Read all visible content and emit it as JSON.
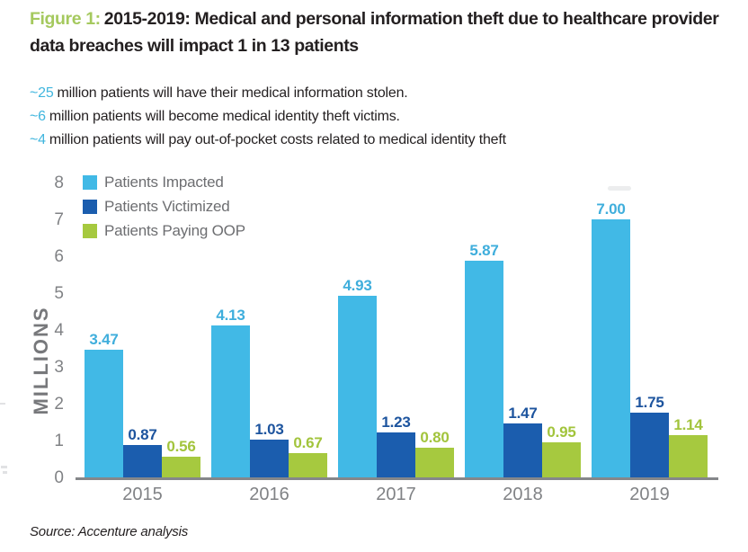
{
  "header": {
    "figure_label": "Figure 1:",
    "title": "2015-2019: Medical and personal information theft due to healthcare provider data breaches will impact 1 in 13 patients"
  },
  "bullets": [
    {
      "prefix": "~25",
      "text": "million patients will have their medical information stolen."
    },
    {
      "prefix": "~6",
      "text": "million patients will become medical identity theft victims."
    },
    {
      "prefix": "~4",
      "text": "million patients will pay out-of-pocket costs related to medical identity theft"
    }
  ],
  "chart_data": {
    "type": "bar",
    "title": "",
    "xlabel": "",
    "ylabel": "MILLIONS",
    "ylim": [
      0,
      8
    ],
    "y_ticks": [
      0,
      1,
      2,
      3,
      4,
      5,
      6,
      7,
      8
    ],
    "grid": false,
    "legend_position": "top-left-inside",
    "categories": [
      "2015",
      "2016",
      "2017",
      "2018",
      "2019"
    ],
    "series": [
      {
        "name": "Patients Impacted",
        "color": "#41B9E6",
        "label_color": "#3FAEDC",
        "values": [
          3.47,
          4.13,
          4.93,
          5.87,
          7.0
        ]
      },
      {
        "name": "Patients Victimized",
        "color": "#1B5DAE",
        "label_color": "#1D549E",
        "values": [
          0.87,
          1.03,
          1.23,
          1.47,
          1.75
        ]
      },
      {
        "name": "Patients Paying OOP",
        "color": "#A6C93F",
        "label_color": "#A2C43C",
        "values": [
          0.56,
          0.67,
          0.8,
          0.95,
          1.14
        ]
      }
    ]
  },
  "footer": {
    "source": "Source: Accenture analysis"
  },
  "colors": {
    "figure_label_green": "#A5C95E",
    "accent_blue": "#41B6DE",
    "text_dark": "#231F20",
    "axis_text_gray": "#808285",
    "legend_text_gray": "#6D6E71",
    "axis_line_gray": "#85878A"
  }
}
